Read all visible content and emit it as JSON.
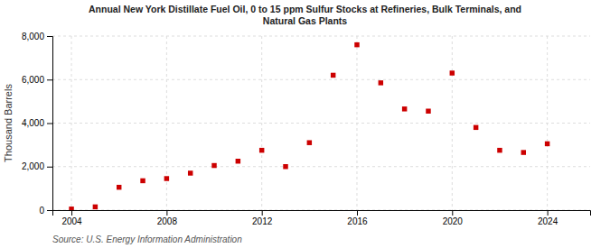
{
  "chart_data": {
    "type": "scatter",
    "title": "Annual New York Distillate Fuel Oil, 0 to 15 ppm Sulfur Stocks at Refineries, Bulk Terminals, and\nNatural Gas Plants",
    "y_label": "Thousand Barrels",
    "annotations": [
      "Source: U.S. Energy Information Administration"
    ],
    "x": [
      2004,
      2005,
      2006,
      2007,
      2008,
      2009,
      2010,
      2011,
      2012,
      2013,
      2014,
      2015,
      2016,
      2017,
      2018,
      2019,
      2020,
      2021,
      2022,
      2023,
      2024
    ],
    "values": [
      50,
      150,
      1050,
      1350,
      1450,
      1700,
      2050,
      2250,
      2750,
      2000,
      3100,
      6200,
      7600,
      5850,
      4650,
      4550,
      6300,
      3800,
      2750,
      2650,
      3050
    ],
    "color": "#cc0000",
    "marker": "square",
    "xlim": [
      2003.2,
      2025.8
    ],
    "xticks": [
      2004,
      2008,
      2012,
      2016,
      2020,
      2024
    ],
    "ylim": [
      0,
      8000
    ],
    "yticks": [
      0,
      {
        "value": 2000,
        "label": "2,000"
      },
      {
        "value": 4000,
        "label": "4,000"
      },
      {
        "value": 6000,
        "label": "6,000"
      },
      {
        "value": 8000,
        "label": "8,000"
      }
    ],
    "grid": true
  }
}
